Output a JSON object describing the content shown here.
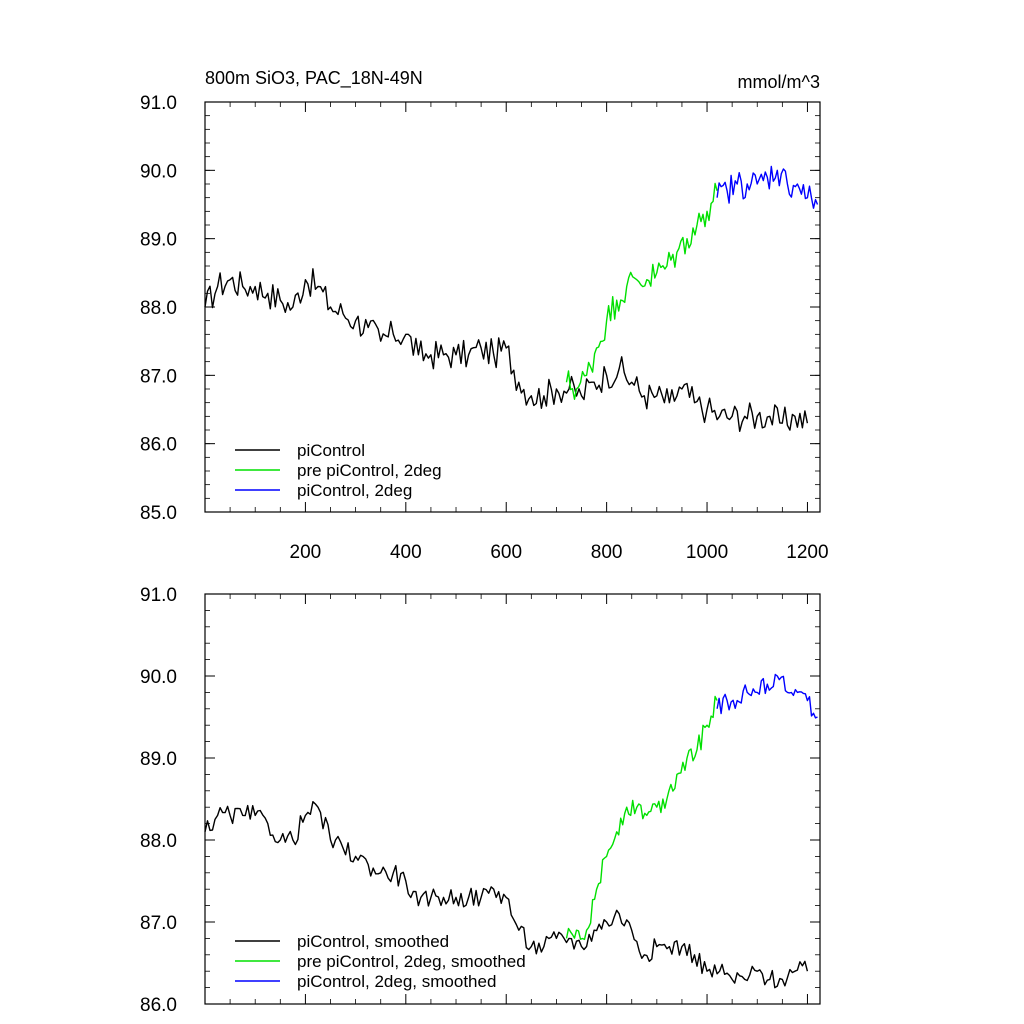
{
  "chart_data": [
    {
      "type": "line",
      "title": "800m SiO3, PAC_18N-49N",
      "units": "mmol/m^3",
      "xlim": [
        0,
        1225
      ],
      "ylim": [
        85.0,
        91.0
      ],
      "xticks": [
        200,
        400,
        600,
        800,
        1000,
        1200
      ],
      "xtick_labels": [
        "200",
        "400",
        "600",
        "800",
        "1000",
        "1200"
      ],
      "yticks": [
        85.0,
        86.0,
        87.0,
        88.0,
        89.0,
        90.0,
        91.0
      ],
      "ytick_labels": [
        "85.0",
        "86.0",
        "87.0",
        "88.0",
        "89.0",
        "90.0",
        "91.0"
      ],
      "grid": false,
      "legend": "bottom-left",
      "series": [
        {
          "name": "piControl",
          "color": "#000000",
          "x": [
            0,
            25,
            50,
            75,
            100,
            125,
            150,
            175,
            200,
            225,
            250,
            275,
            300,
            325,
            350,
            375,
            400,
            425,
            450,
            475,
            500,
            525,
            550,
            575,
            600,
            625,
            650,
            675,
            700,
            725,
            750,
            775,
            800,
            825,
            850,
            875,
            900,
            925,
            950,
            975,
            1000,
            1025,
            1050,
            1075,
            1100,
            1125,
            1150,
            1175,
            1200
          ],
          "y": [
            88.0,
            88.3,
            88.4,
            88.3,
            88.3,
            88.2,
            88.1,
            88.0,
            88.4,
            88.3,
            88.0,
            87.9,
            87.8,
            87.7,
            87.5,
            87.6,
            87.6,
            87.3,
            87.3,
            87.3,
            87.3,
            87.3,
            87.4,
            87.3,
            87.4,
            86.9,
            86.7,
            86.7,
            86.8,
            86.8,
            86.7,
            86.9,
            87.0,
            87.1,
            86.9,
            86.7,
            86.7,
            86.6,
            86.8,
            86.6,
            86.5,
            86.4,
            86.4,
            86.4,
            86.4,
            86.4,
            86.3,
            86.4,
            86.3
          ]
        },
        {
          "name": "pre piControl, 2deg",
          "color": "#00e000",
          "x": [
            720,
            740,
            760,
            780,
            800,
            820,
            840,
            860,
            880,
            900,
            920,
            940,
            960,
            980,
            1000,
            1020
          ],
          "y": [
            86.9,
            86.8,
            87.0,
            87.4,
            87.8,
            88.1,
            88.3,
            88.4,
            88.4,
            88.5,
            88.6,
            88.8,
            89.0,
            89.2,
            89.4,
            89.7
          ]
        },
        {
          "name": "piControl, 2deg",
          "color": "#0000ff",
          "x": [
            1020,
            1040,
            1060,
            1080,
            1100,
            1120,
            1140,
            1160,
            1180,
            1200,
            1220
          ],
          "y": [
            89.6,
            89.7,
            89.8,
            89.8,
            89.8,
            89.9,
            90.0,
            89.8,
            89.8,
            89.6,
            89.5
          ]
        }
      ]
    },
    {
      "type": "line",
      "xlim": [
        0,
        1225
      ],
      "ylim": [
        86.0,
        91.0
      ],
      "yticks": [
        86.0,
        87.0,
        88.0,
        89.0,
        90.0,
        91.0
      ],
      "ytick_labels": [
        "86.0",
        "87.0",
        "88.0",
        "89.0",
        "90.0",
        "91.0"
      ],
      "grid": false,
      "legend": "bottom-left",
      "series": [
        {
          "name": "piControl, smoothed",
          "color": "#000000",
          "x": [
            0,
            25,
            50,
            75,
            100,
            125,
            150,
            175,
            200,
            225,
            250,
            275,
            300,
            325,
            350,
            375,
            400,
            425,
            450,
            475,
            500,
            525,
            550,
            575,
            600,
            625,
            650,
            675,
            700,
            725,
            750,
            775,
            800,
            825,
            850,
            875,
            900,
            925,
            950,
            975,
            1000,
            1025,
            1050,
            1075,
            1100,
            1125,
            1150,
            1175,
            1200
          ],
          "y": [
            88.1,
            88.3,
            88.3,
            88.3,
            88.3,
            88.2,
            88.0,
            88.0,
            88.3,
            88.4,
            88.0,
            87.9,
            87.8,
            87.7,
            87.6,
            87.6,
            87.5,
            87.2,
            87.3,
            87.3,
            87.3,
            87.3,
            87.3,
            87.4,
            87.3,
            86.9,
            86.7,
            86.7,
            86.8,
            86.8,
            86.7,
            86.9,
            87.0,
            87.1,
            86.9,
            86.6,
            86.7,
            86.7,
            86.7,
            86.6,
            86.4,
            86.4,
            86.3,
            86.3,
            86.4,
            86.3,
            86.3,
            86.4,
            86.4
          ]
        },
        {
          "name": "pre piControl, 2deg, smoothed",
          "color": "#00e000",
          "x": [
            720,
            740,
            760,
            780,
            800,
            820,
            840,
            860,
            880,
            900,
            920,
            940,
            960,
            980,
            1000,
            1020
          ],
          "y": [
            86.8,
            86.9,
            86.9,
            87.4,
            87.8,
            88.1,
            88.4,
            88.4,
            88.3,
            88.4,
            88.5,
            88.8,
            89.0,
            89.1,
            89.4,
            89.7
          ]
        },
        {
          "name": "piControl, 2deg, smoothed",
          "color": "#0000ff",
          "x": [
            1020,
            1040,
            1060,
            1080,
            1100,
            1120,
            1140,
            1160,
            1180,
            1200,
            1220
          ],
          "y": [
            89.6,
            89.7,
            89.7,
            89.8,
            89.8,
            89.9,
            90.0,
            89.8,
            89.8,
            89.7,
            89.5
          ]
        }
      ]
    }
  ]
}
